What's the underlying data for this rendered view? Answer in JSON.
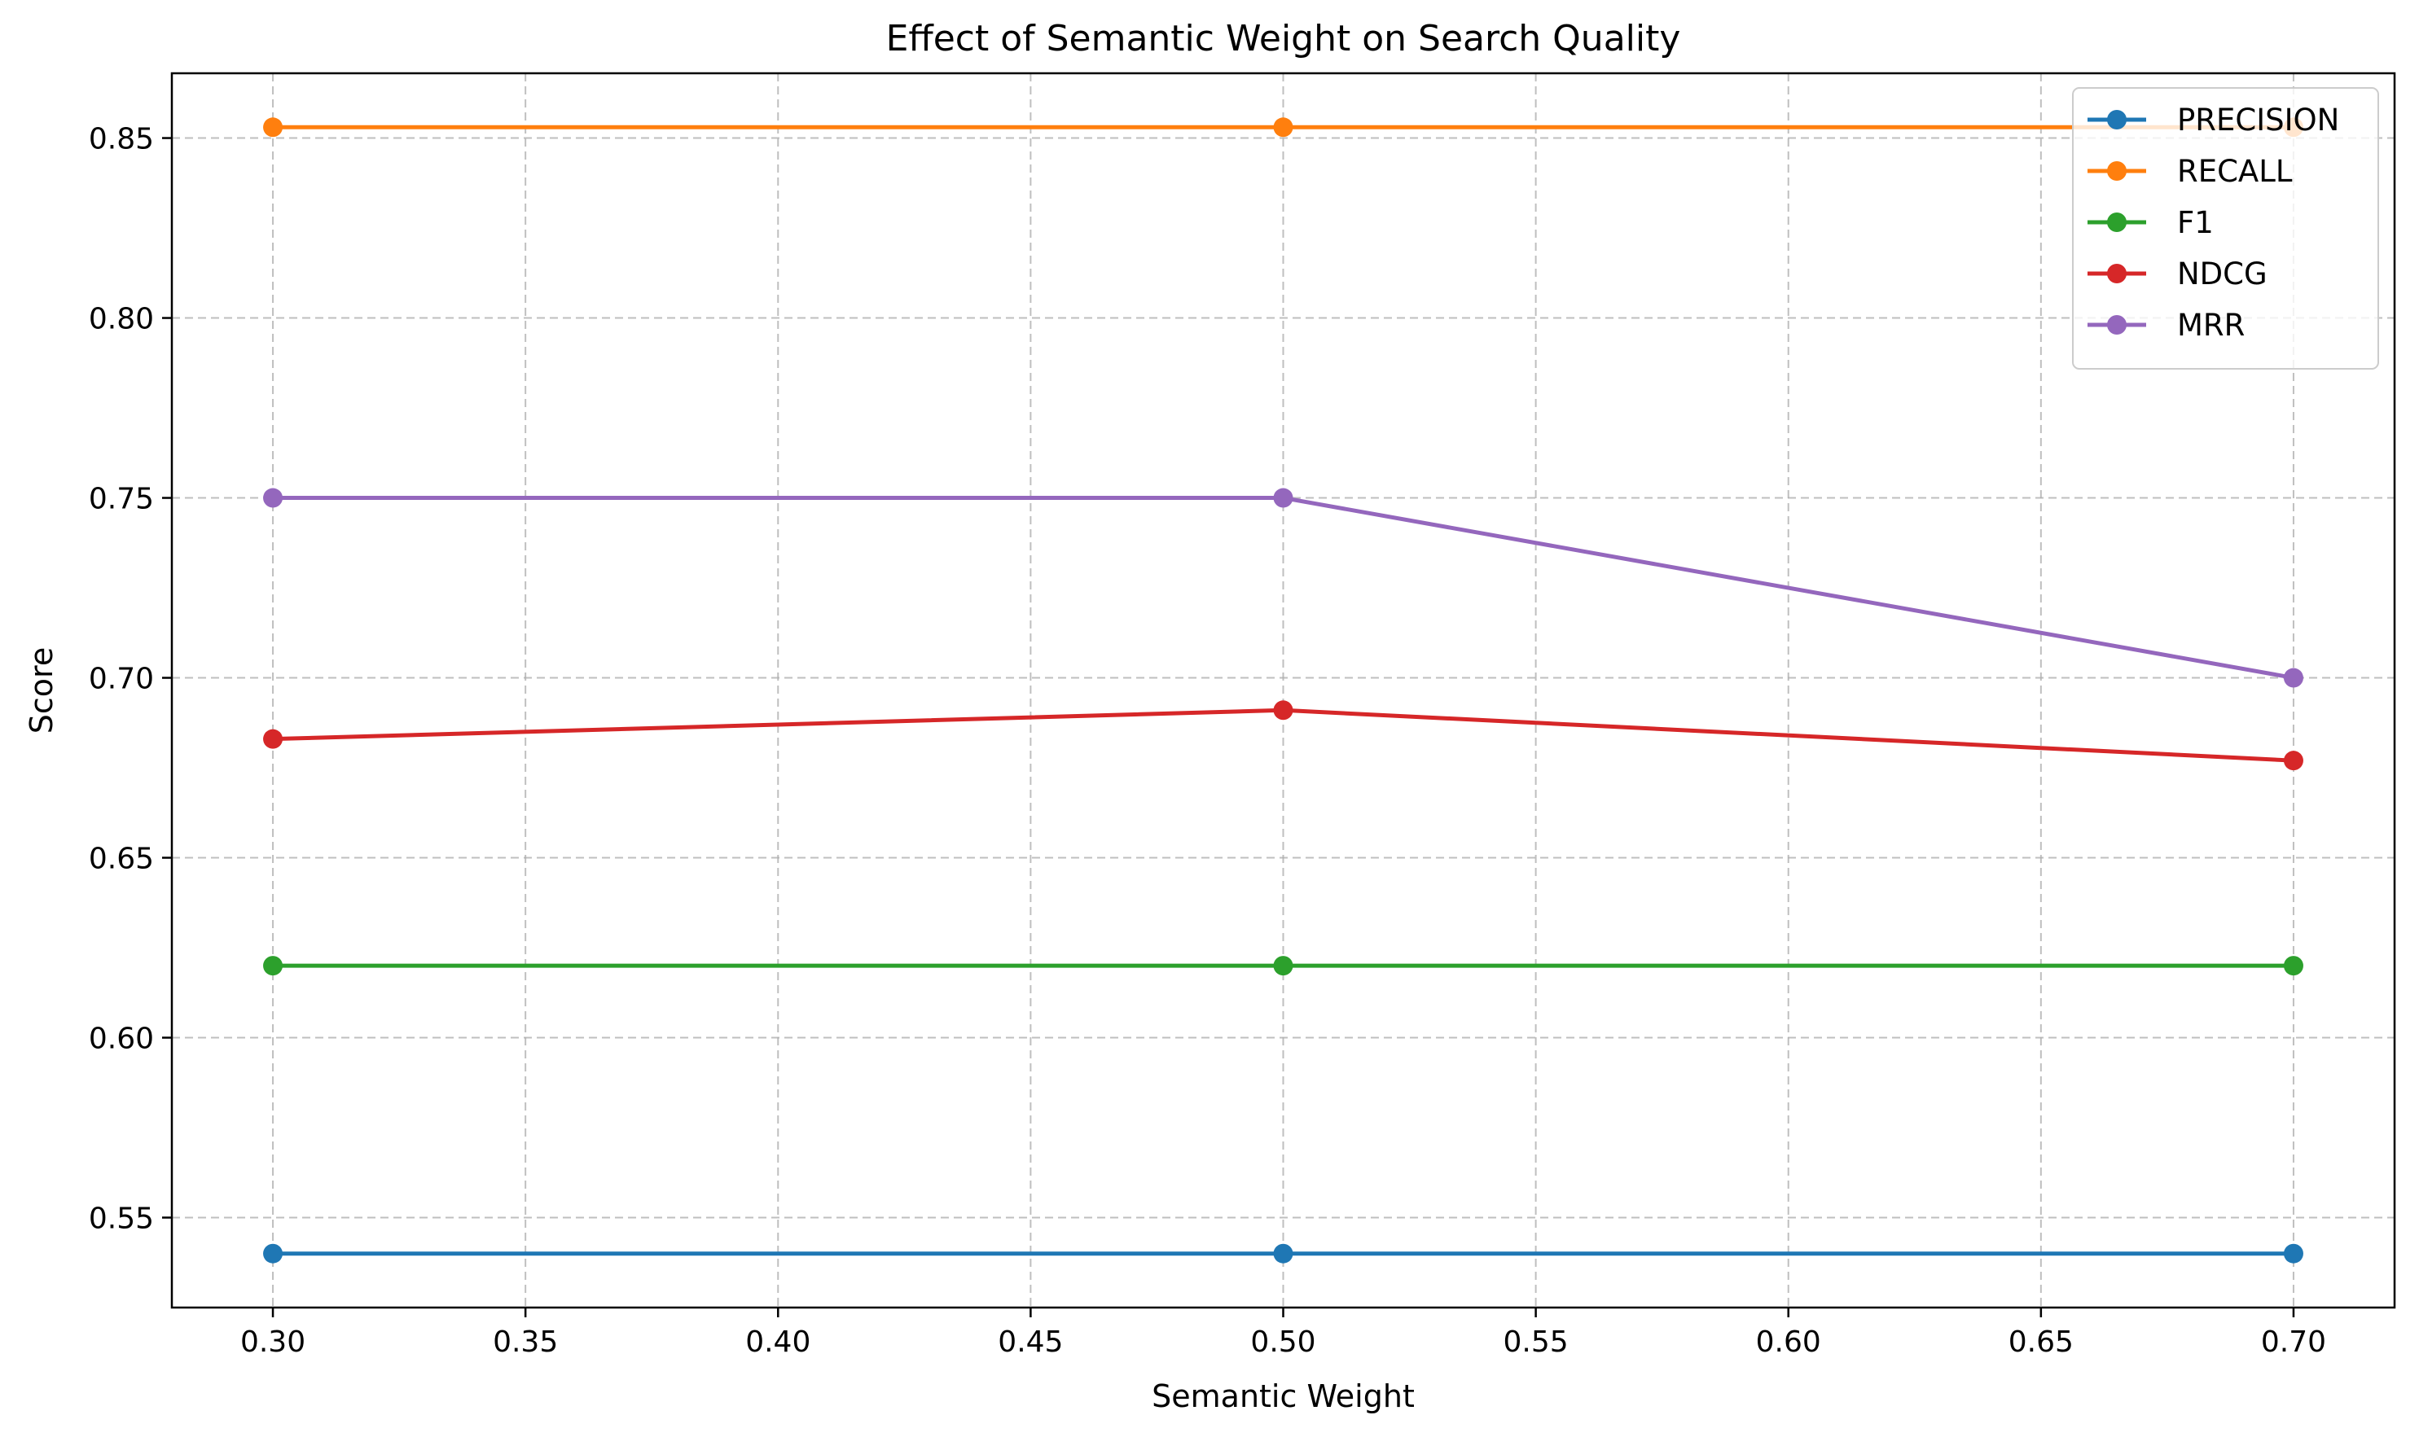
{
  "chart_data": {
    "type": "line",
    "title": "Effect of Semantic Weight on Search Quality",
    "xlabel": "Semantic Weight",
    "ylabel": "Score",
    "x": [
      0.3,
      0.5,
      0.7
    ],
    "xlim": [
      0.28,
      0.72
    ],
    "ylim": [
      0.525,
      0.868
    ],
    "xticks": [
      "0.30",
      "0.35",
      "0.40",
      "0.45",
      "0.50",
      "0.55",
      "0.60",
      "0.65",
      "0.70"
    ],
    "yticks": [
      "0.55",
      "0.60",
      "0.65",
      "0.70",
      "0.75",
      "0.80",
      "0.85"
    ],
    "grid": true,
    "legend_position": "top-right",
    "series": [
      {
        "name": "PRECISION",
        "color": "#1f77b4",
        "values": [
          0.54,
          0.54,
          0.54
        ]
      },
      {
        "name": "RECALL",
        "color": "#ff7f0e",
        "values": [
          0.853,
          0.853,
          0.853
        ]
      },
      {
        "name": "F1",
        "color": "#2ca02c",
        "values": [
          0.62,
          0.62,
          0.62
        ]
      },
      {
        "name": "NDCG",
        "color": "#d62728",
        "values": [
          0.683,
          0.691,
          0.677
        ]
      },
      {
        "name": "MRR",
        "color": "#9467bd",
        "values": [
          0.75,
          0.75,
          0.7
        ]
      }
    ]
  }
}
